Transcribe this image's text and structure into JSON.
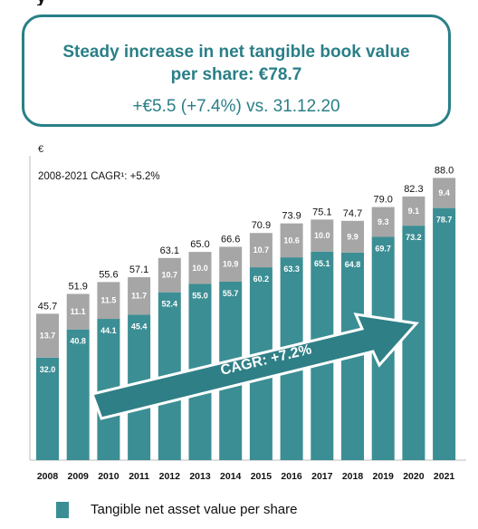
{
  "header": {
    "headline": "Steady increase in net tangible book value per share: €78.7",
    "subline": "+€5.5 (+7.4%) vs. 31.12.20"
  },
  "chart_data": {
    "type": "bar",
    "stacked": true,
    "unit_label": "€",
    "annotation": "2008-2021 CAGR¹: +5.2%",
    "arrow_label": "CAGR: +7.2%",
    "categories": [
      "2008",
      "2009",
      "2010",
      "2011",
      "2012",
      "2013",
      "2014",
      "2015",
      "2016",
      "2017",
      "2018",
      "2019",
      "2020",
      "2021"
    ],
    "series": [
      {
        "name": "Tangible net asset value per share",
        "color": "#3b8e94",
        "values": [
          32.0,
          40.8,
          44.1,
          45.4,
          52.4,
          55.0,
          55.7,
          60.2,
          63.3,
          65.1,
          64.8,
          69.7,
          73.2,
          78.7
        ]
      },
      {
        "color": "#a6a6a6",
        "values": [
          13.7,
          11.1,
          11.5,
          11.7,
          10.7,
          10.0,
          10.9,
          10.7,
          10.6,
          10.0,
          9.9,
          9.3,
          9.1,
          9.4
        ]
      }
    ],
    "totals": [
      45.7,
      51.9,
      55.6,
      57.1,
      63.1,
      65.0,
      66.6,
      70.9,
      73.9,
      75.1,
      74.7,
      79.0,
      82.3,
      88.0
    ],
    "ylim": [
      0,
      95
    ]
  },
  "legend": {
    "label": "Tangible net asset value per share"
  }
}
